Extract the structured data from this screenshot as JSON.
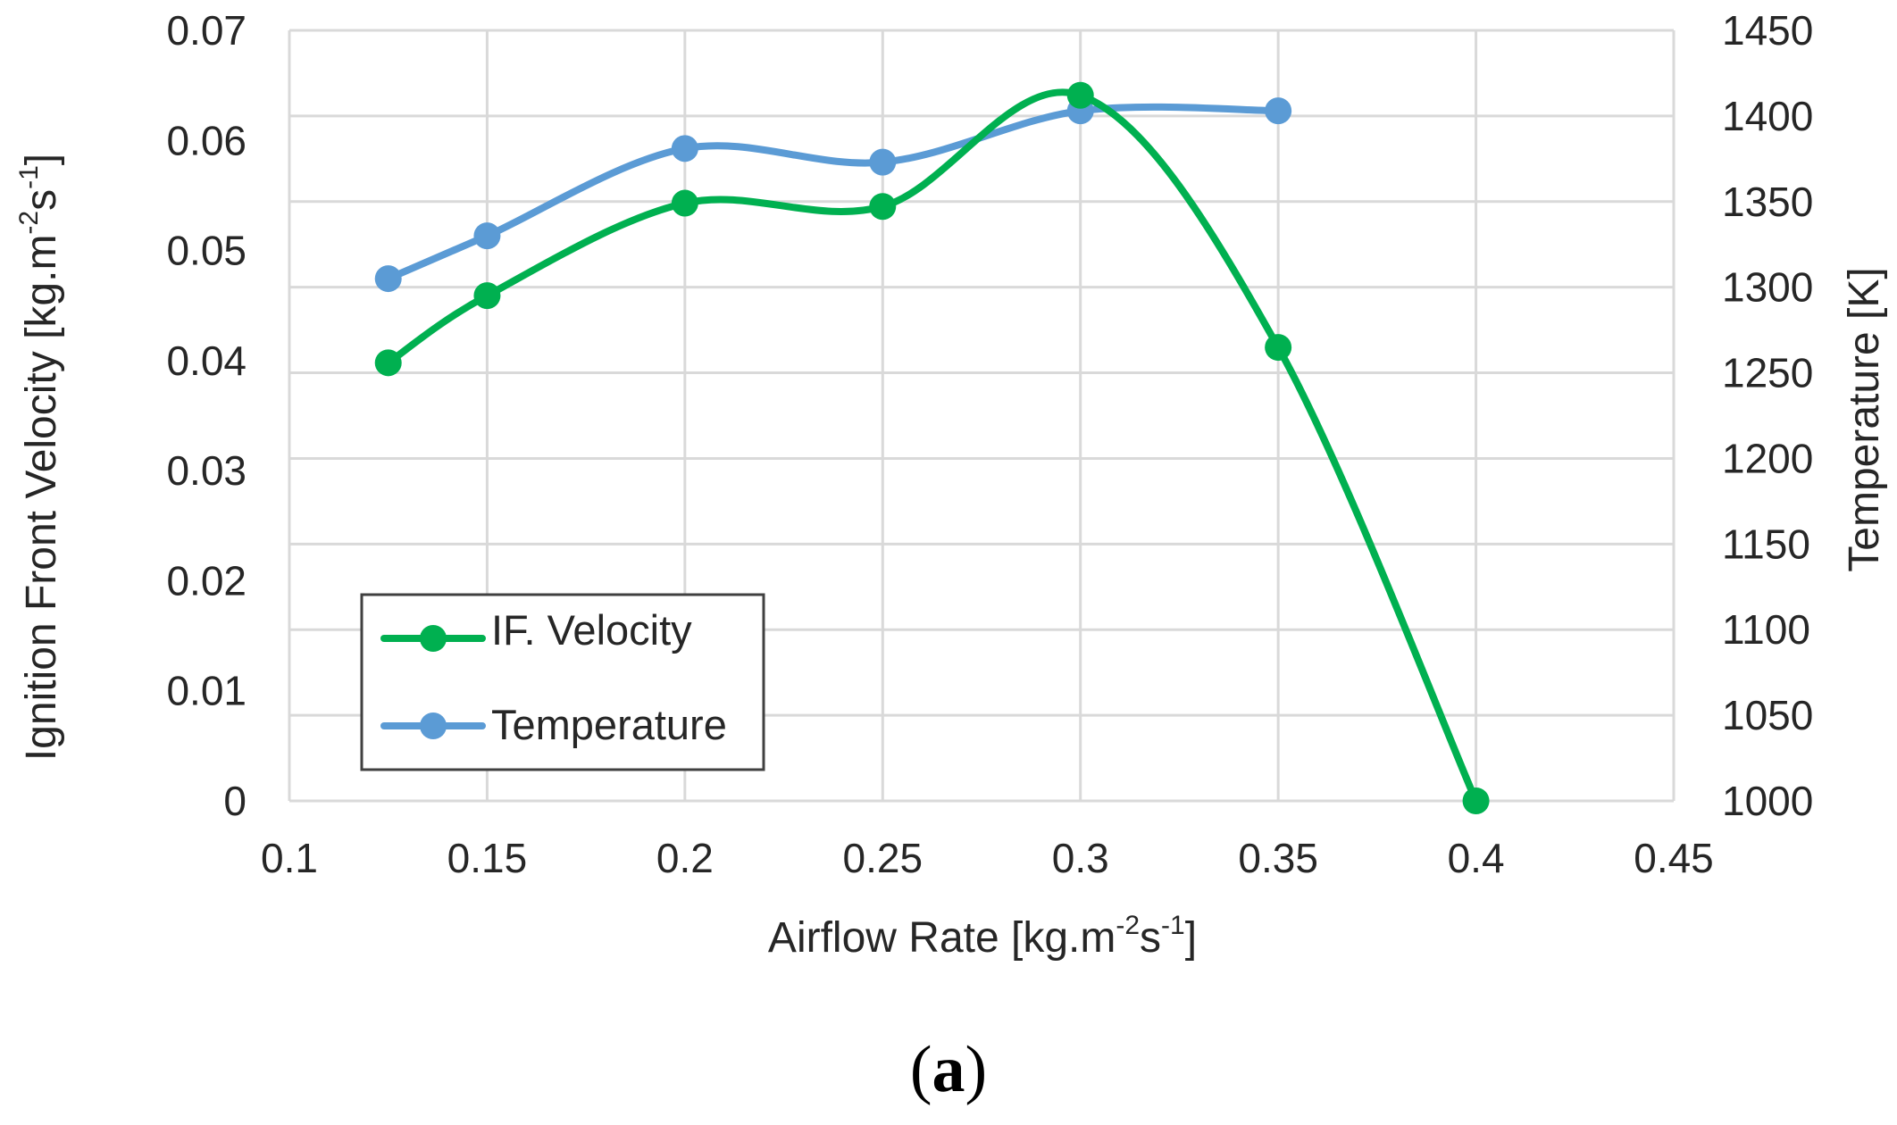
{
  "chart_data": {
    "type": "line",
    "title": "",
    "xlabel": {
      "main": "Airflow Rate [kg.m",
      "exp1": "-2",
      "mid": "s",
      "exp2": "-1",
      "end": "]"
    },
    "ylabel": {
      "main": "Ignition Front Velocity [kg.m",
      "exp1": "-2",
      "mid": "s",
      "exp2": "-1",
      "end": "]"
    },
    "y2label": "Temperature [K]",
    "xlim": [
      0.1,
      0.45
    ],
    "ylim": [
      0,
      0.07
    ],
    "y2lim": [
      1000,
      1450
    ],
    "x_ticks": [
      "0.1",
      "0.15",
      "0.2",
      "0.25",
      "0.3",
      "0.35",
      "0.4",
      "0.45"
    ],
    "y_ticks": [
      "0",
      "0.01",
      "0.02",
      "0.03",
      "0.04",
      "0.05",
      "0.06",
      "0.07"
    ],
    "y2_ticks": [
      "1000",
      "1050",
      "1100",
      "1150",
      "1200",
      "1250",
      "1300",
      "1350",
      "1400",
      "1450"
    ],
    "grid": true,
    "legend_position": "bottom-left",
    "series": [
      {
        "name": "IF. Velocity",
        "axis": "left",
        "color": "#00b050",
        "x": [
          0.125,
          0.15,
          0.2,
          0.25,
          0.3,
          0.35,
          0.4
        ],
        "values": [
          0.0398,
          0.0459,
          0.0543,
          0.054,
          0.0641,
          0.0412,
          0.0
        ]
      },
      {
        "name": "Temperature",
        "axis": "right",
        "color": "#5b9bd5",
        "x": [
          0.125,
          0.15,
          0.2,
          0.25,
          0.3,
          0.35
        ],
        "values": [
          1305,
          1330,
          1381,
          1373,
          1403,
          1403
        ]
      }
    ]
  },
  "panel_label": {
    "open": "(",
    "letter": "a",
    "close": ")"
  }
}
